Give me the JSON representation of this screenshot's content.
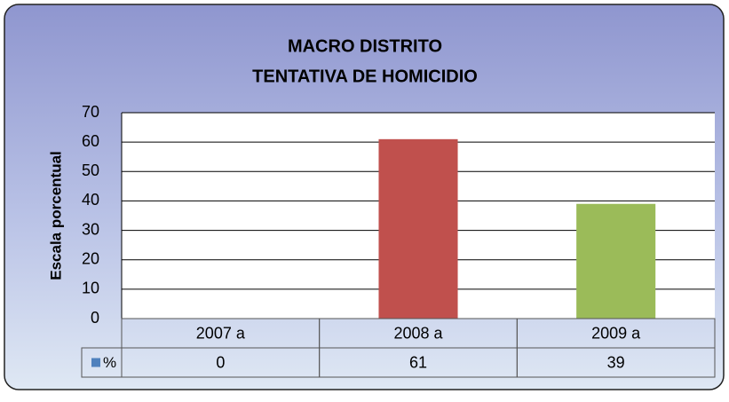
{
  "chart_data": {
    "type": "bar",
    "title": [
      "MACRO DISTRITO",
      "TENTATIVA DE HOMICIDIO"
    ],
    "y_label": "Escala porcentual",
    "categories": [
      "2007 a",
      "2008 a",
      "2009 a"
    ],
    "series": [
      {
        "name": "%",
        "color": "#4F81BD",
        "values": [
          0,
          61,
          39
        ],
        "bar_colors": [
          "#4F81BD",
          "#C0504D",
          "#9BBB59"
        ]
      }
    ],
    "ylim": [
      0,
      70
    ],
    "yticks": [
      0,
      10,
      20,
      30,
      40,
      50,
      60,
      70
    ],
    "grid": true,
    "data_table": true
  }
}
